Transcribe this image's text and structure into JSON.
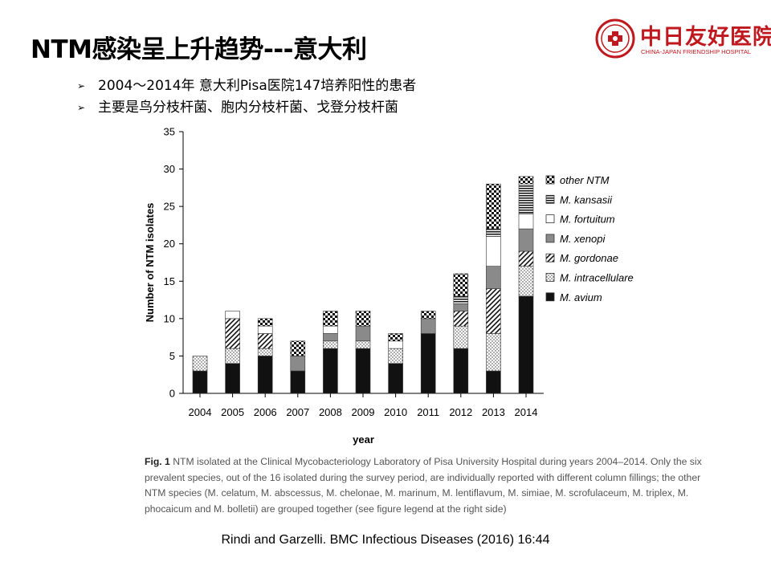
{
  "slide": {
    "title": "NTM感染呈上升趋势---意大利",
    "bullets": [
      "2004～2014年 意大利Pisa医院147培养阳性的患者",
      "主要是鸟分枝杆菌、胞内分枝杆菌、戈登分枝杆菌"
    ],
    "bullet_symbol": "➢",
    "citation": "Rindi and Garzelli. BMC Infectious Diseases (2016) 16:44"
  },
  "logo": {
    "name": "中日友好医院",
    "subtitle": "CHINA-JAPAN FRIENDSHIP HOSPITAL",
    "color": "#c0181f"
  },
  "figure": {
    "label": "Fig. 1",
    "text": "NTM isolated at the Clinical Mycobacteriology Laboratory of Pisa University Hospital during years 2004–2014. Only the six prevalent species, out of the 16 isolated during the survey period, are individually reported with different column fillings; the other NTM species (M. celatum, M. abscessus, M. chelonae, M. marinum, M. lentiflavum, M. simiae, M. scrofulaceum, M. triplex, M. phocaicum and M. bolletii) are grouped together (see figure legend at the right side)"
  },
  "chart_data": {
    "type": "bar",
    "stacked": true,
    "xlabel": "year",
    "ylabel": "Number of NTM isolates",
    "ylim": [
      0,
      35
    ],
    "yticks": [
      0,
      5,
      10,
      15,
      20,
      25,
      30,
      35
    ],
    "grid": false,
    "legend_position": "right",
    "categories": [
      "2004",
      "2005",
      "2006",
      "2007",
      "2008",
      "2009",
      "2010",
      "2011",
      "2012",
      "2013",
      "2014"
    ],
    "series": [
      {
        "name": "M. avium",
        "pattern": "solid",
        "values": [
          3,
          4,
          5,
          3,
          6,
          6,
          4,
          8,
          6,
          3,
          13
        ]
      },
      {
        "name": "M. intracellulare",
        "pattern": "dots",
        "values": [
          2,
          2,
          1,
          0,
          1,
          1,
          2,
          0,
          3,
          5,
          4
        ]
      },
      {
        "name": "M. gordonae",
        "pattern": "diagonal",
        "values": [
          0,
          4,
          2,
          0,
          0,
          0,
          0,
          0,
          2,
          6,
          2
        ]
      },
      {
        "name": "M. xenopi",
        "pattern": "gray",
        "values": [
          0,
          0,
          0,
          2,
          1,
          2,
          0,
          2,
          1,
          3,
          3
        ]
      },
      {
        "name": "M. fortuitum",
        "pattern": "white",
        "values": [
          0,
          1,
          1,
          0,
          1,
          0,
          1,
          0,
          0,
          4,
          2
        ]
      },
      {
        "name": "M. kansasii",
        "pattern": "hstripes",
        "values": [
          0,
          0,
          0,
          0,
          0,
          0,
          0,
          0,
          1,
          1,
          4
        ]
      },
      {
        "name": "other NTM",
        "pattern": "checker",
        "values": [
          0,
          0,
          1,
          2,
          2,
          2,
          1,
          1,
          3,
          6,
          1
        ]
      }
    ]
  }
}
